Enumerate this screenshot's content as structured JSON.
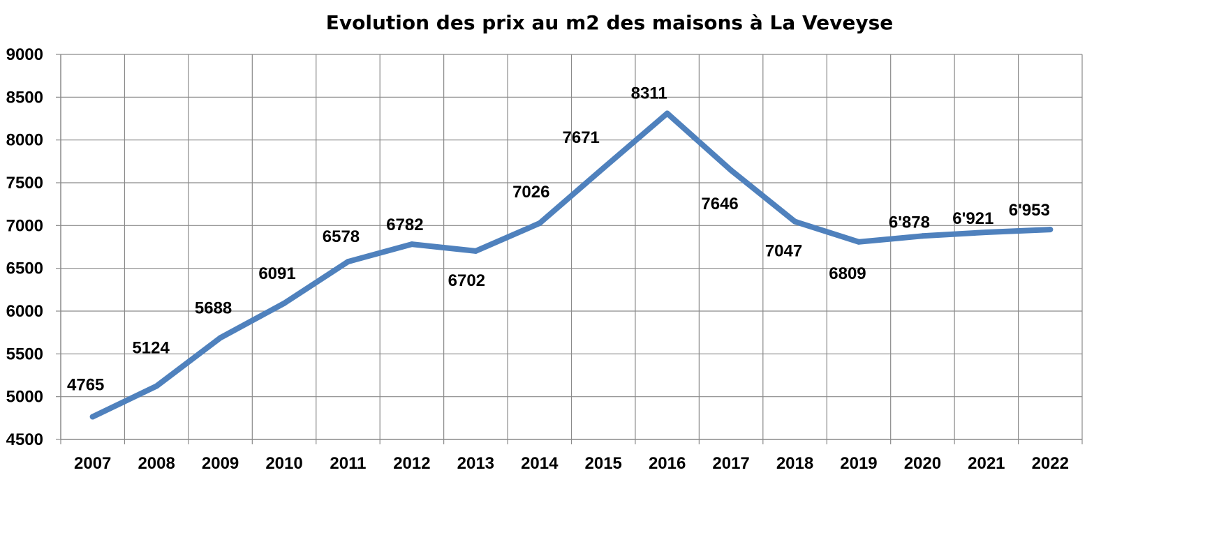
{
  "chart_data": {
    "type": "line",
    "title": "Evolution des prix au m2 des maisons à La Veveyse",
    "xlabel": "",
    "ylabel": "",
    "categories": [
      "2007",
      "2008",
      "2009",
      "2010",
      "2011",
      "2012",
      "2013",
      "2014",
      "2015",
      "2016",
      "2017",
      "2018",
      "2019",
      "2020",
      "2021",
      "2022"
    ],
    "series": [
      {
        "values": [
          4765,
          5124,
          5688,
          6091,
          6578,
          6782,
          6702,
          7026,
          7671,
          8311,
          7646,
          7047,
          6809,
          6878,
          6921,
          6953
        ],
        "labels": [
          "4765",
          "5124",
          "5688",
          "6091",
          "6578",
          "6782",
          "6702",
          "7026",
          "7671",
          "8311",
          "7646",
          "7047",
          "6809",
          "6'878",
          "6'921",
          "6'953"
        ],
        "color": "#4F81BD"
      }
    ],
    "ylim": [
      4500,
      9000
    ],
    "yticks": [
      "4500",
      "5000",
      "5500",
      "6000",
      "6500",
      "7000",
      "7500",
      "8000",
      "8500",
      "9000"
    ],
    "grid": true,
    "legend": "none"
  }
}
